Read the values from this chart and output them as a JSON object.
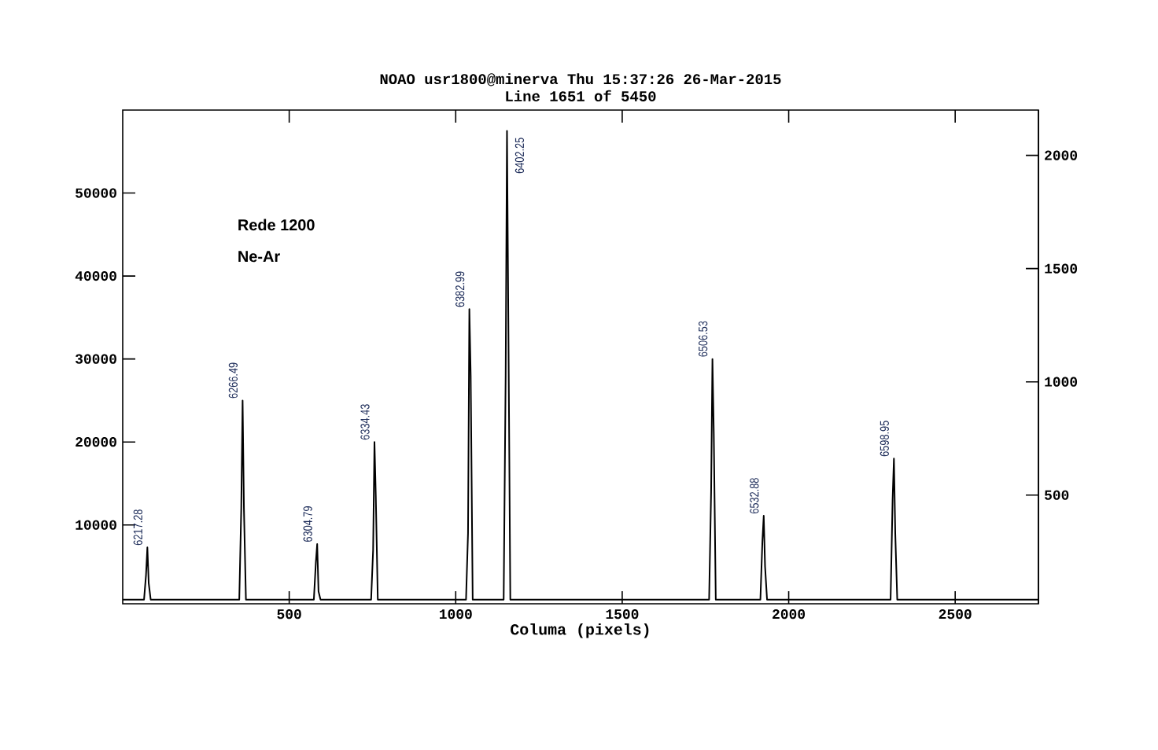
{
  "chart_data": {
    "type": "line",
    "title": "NOAO usr1800@minerva Thu 15:37:26 26-Mar-2015",
    "subtitle": "Line 1651 of 5450",
    "xlabel": "Columa (pixels)",
    "x": [
      0,
      64,
      70,
      74,
      78,
      84,
      350,
      356,
      360,
      364,
      370,
      574,
      580,
      584,
      588,
      594,
      746,
      752,
      756,
      760,
      766,
      1031,
      1037,
      1041,
      1045,
      1051,
      1144,
      1150,
      1154,
      1158,
      1164,
      1761,
      1767,
      1771,
      1775,
      1781,
      1915,
      1921,
      1925,
      1929,
      1935,
      2306,
      2312,
      2316,
      2320,
      2326,
      2750
    ],
    "series": [
      {
        "color": "#000000",
        "values": [
          1000,
          1000,
          4000,
          7300,
          3000,
          1000,
          1000,
          12000,
          25000,
          12000,
          1000,
          1000,
          5500,
          7700,
          2000,
          1000,
          1000,
          7000,
          20000,
          13500,
          1000,
          1000,
          9000,
          36000,
          28000,
          1000,
          1000,
          28000,
          57500,
          35000,
          1000,
          1000,
          14000,
          30000,
          21000,
          1000,
          1000,
          8000,
          11100,
          5000,
          1000,
          1000,
          13000,
          18000,
          9000,
          1000,
          1000
        ]
      }
    ],
    "xlim": [
      0,
      2750
    ],
    "ylim": [
      500,
      60000
    ],
    "xticks": [
      500,
      1000,
      1500,
      2000,
      2500
    ],
    "yticks": [
      10000,
      20000,
      30000,
      40000,
      50000
    ],
    "y2lim": [
      20,
      2200
    ],
    "y2ticks": [
      500,
      1000,
      1500,
      2000
    ],
    "grid": false,
    "marker": "none",
    "line_style": "solid",
    "annotations": [
      "Rede 1200",
      "Ne-Ar",
      {
        "text": "6217.28",
        "x": 74,
        "y": 7300
      },
      {
        "text": "6266.49",
        "x": 360,
        "y": 25000
      },
      {
        "text": "6304.79",
        "x": 584,
        "y": 7700
      },
      {
        "text": "6334.43",
        "x": 756,
        "y": 20000
      },
      {
        "text": "6382.99",
        "x": 1041,
        "y": 36000
      },
      {
        "text": "6402.25",
        "x": 1154,
        "y": 57500
      },
      {
        "text": "6506.53",
        "x": 1771,
        "y": 30000
      },
      {
        "text": "6532.88",
        "x": 1925,
        "y": 11100
      },
      {
        "text": "6598.95",
        "x": 2316,
        "y": 18000
      }
    ]
  }
}
